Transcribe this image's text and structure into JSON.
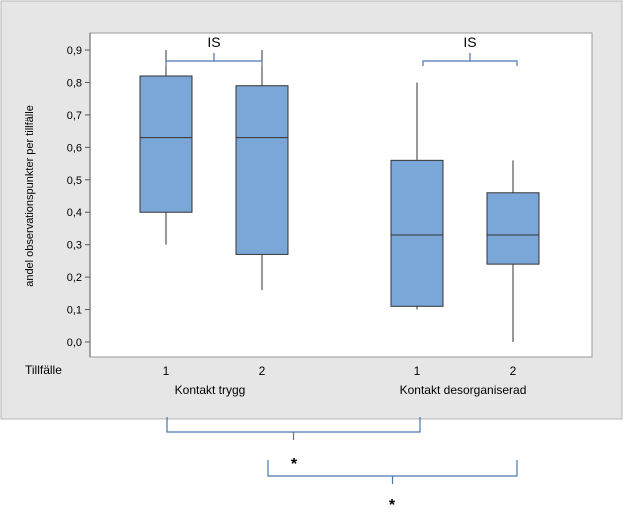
{
  "chart_data": {
    "type": "boxplot",
    "ylabel": "andel observationspunkter per tillfälle",
    "ylim": [
      0.0,
      0.9
    ],
    "yticks": [
      "0,0",
      "0,1",
      "0,2",
      "0,3",
      "0,4",
      "0,5",
      "0,6",
      "0,7",
      "0,8",
      "0,9"
    ],
    "x_axis_title": "Tillfälle",
    "groups": [
      {
        "name": "Kontakt trygg",
        "boxes": [
          {
            "label": "1",
            "min": 0.3,
            "q1": 0.4,
            "median": 0.63,
            "q3": 0.82,
            "max": 0.9
          },
          {
            "label": "2",
            "min": 0.16,
            "q1": 0.27,
            "median": 0.63,
            "q3": 0.79,
            "max": 0.9
          }
        ]
      },
      {
        "name": "Kontakt desorganiserad",
        "boxes": [
          {
            "label": "1",
            "min": 0.1,
            "q1": 0.11,
            "median": 0.33,
            "q3": 0.56,
            "max": 0.8
          },
          {
            "label": "2",
            "min": 0.0,
            "q1": 0.24,
            "median": 0.33,
            "q3": 0.46,
            "max": 0.56
          }
        ]
      }
    ],
    "annotations": {
      "within_group_1": "IS",
      "within_group_2": "IS",
      "between_tillfalle_1": "*",
      "between_tillfalle_2": "*"
    },
    "colors": {
      "box_fill": "#7aa6d8",
      "bracket": "#4a76b0",
      "panel_bg": "#e6e6e6",
      "plot_bg": "#ffffff"
    },
    "grid": false
  }
}
